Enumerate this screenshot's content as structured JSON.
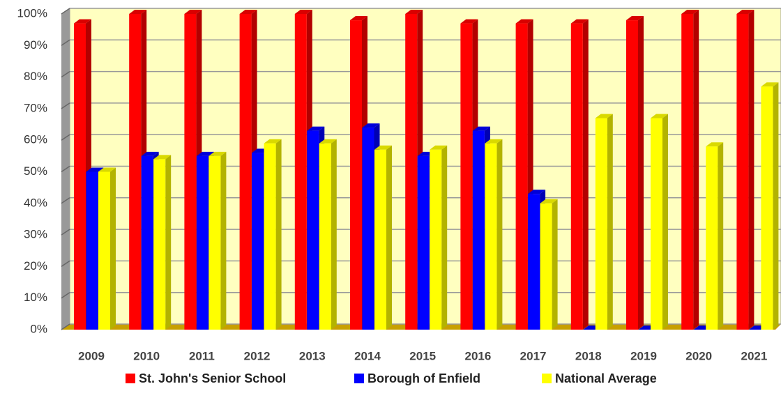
{
  "chart_data": {
    "type": "bar3d",
    "categories": [
      "2009",
      "2010",
      "2011",
      "2012",
      "2013",
      "2014",
      "2015",
      "2016",
      "2017",
      "2018",
      "2019",
      "2020",
      "2021"
    ],
    "series": [
      {
        "name": "St. John's Senior School",
        "color": "#ff0000",
        "values": [
          97,
          100,
          100,
          100,
          100,
          98,
          100,
          97,
          97,
          97,
          98,
          100,
          100
        ]
      },
      {
        "name": "Borough of Enfield",
        "color": "#0000ff",
        "values": [
          50,
          55,
          55,
          56,
          63,
          64,
          55,
          63,
          43,
          0,
          0,
          0,
          0
        ]
      },
      {
        "name": "National Average",
        "color": "#ffff00",
        "values": [
          50,
          54,
          55,
          59,
          59,
          57,
          57,
          59,
          40,
          67,
          67,
          58,
          77
        ]
      }
    ],
    "ylim": [
      0,
      100
    ],
    "yticks": [
      {
        "value": 0,
        "label": "0%"
      },
      {
        "value": 10,
        "label": "10%"
      },
      {
        "value": 20,
        "label": "20%"
      },
      {
        "value": 30,
        "label": "30%"
      },
      {
        "value": 40,
        "label": "40%"
      },
      {
        "value": 50,
        "label": "50%"
      },
      {
        "value": 60,
        "label": "60%"
      },
      {
        "value": 70,
        "label": "70%"
      },
      {
        "value": 80,
        "label": "80%"
      },
      {
        "value": 90,
        "label": "90%"
      },
      {
        "value": 100,
        "label": "100%"
      }
    ],
    "grid": true
  }
}
